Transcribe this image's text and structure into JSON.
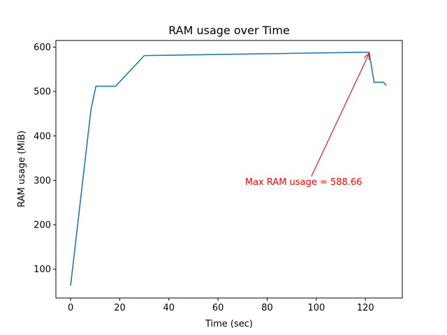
{
  "chart_data": {
    "type": "line",
    "title": "RAM usage over Time",
    "xlabel": "Time (sec)",
    "ylabel": "RAM usage (MiB)",
    "xlim": [
      -6,
      135
    ],
    "ylim": [
      35,
      615
    ],
    "xticks": [
      0,
      20,
      40,
      60,
      80,
      100,
      120
    ],
    "yticks": [
      100,
      200,
      300,
      400,
      500,
      600
    ],
    "grid": false,
    "series": [
      {
        "color": "#1f77b4",
        "x": [
          0,
          8.3,
          10.3,
          18.3,
          30,
          121.5,
          123.5,
          127.3,
          128.5
        ],
        "y": [
          63,
          460,
          512,
          512,
          581,
          588.66,
          521,
          521,
          514
        ]
      }
    ],
    "annotations": [
      {
        "text": "Max RAM usage = 588.66",
        "color": "#ff0000",
        "point": [
          121.5,
          588.66
        ],
        "text_position": [
          71,
          290
        ]
      }
    ]
  }
}
